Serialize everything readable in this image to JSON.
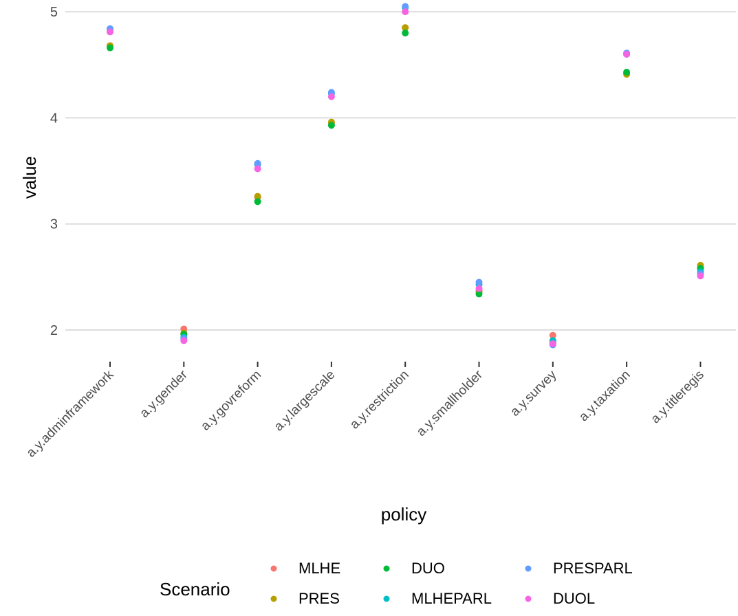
{
  "chart_data": {
    "type": "scatter",
    "xlabel": "policy",
    "ylabel": "value",
    "categories": [
      "a.y.adminframework",
      "a.y.gender",
      "a.y.govreform",
      "a.y.largescale",
      "a.y.restriction",
      "a.y.smallholder",
      "a.y.survey",
      "a.y.taxation",
      "a.y.titleregis"
    ],
    "y_ticks": [
      2,
      3,
      4,
      5
    ],
    "ylim": [
      1.72,
      5.12
    ],
    "grid": true,
    "legend": {
      "title": "Scenario",
      "position": "bottom"
    },
    "series": [
      {
        "name": "MLHE",
        "color": "#F8766D",
        "values": [
          4.68,
          2.01,
          3.25,
          3.95,
          4.85,
          2.37,
          1.95,
          4.42,
          2.59
        ]
      },
      {
        "name": "PRES",
        "color": "#B79F00",
        "values": [
          4.68,
          1.97,
          3.26,
          3.96,
          4.85,
          2.36,
          1.88,
          4.41,
          2.61
        ]
      },
      {
        "name": "DUO",
        "color": "#00BA38",
        "values": [
          4.66,
          1.96,
          3.21,
          3.93,
          4.8,
          2.34,
          1.88,
          4.43,
          2.58
        ]
      },
      {
        "name": "MLHEPARL",
        "color": "#00BFC4",
        "values": [
          4.83,
          1.93,
          3.56,
          4.23,
          5.04,
          2.43,
          1.9,
          4.6,
          2.55
        ]
      },
      {
        "name": "PRESPARL",
        "color": "#619CFF",
        "values": [
          4.84,
          1.92,
          3.57,
          4.24,
          5.05,
          2.45,
          1.86,
          4.61,
          2.53
        ]
      },
      {
        "name": "DUOL",
        "color": "#F564E3",
        "values": [
          4.81,
          1.9,
          3.52,
          4.2,
          5.0,
          2.39,
          1.87,
          4.6,
          2.51
        ]
      }
    ]
  }
}
